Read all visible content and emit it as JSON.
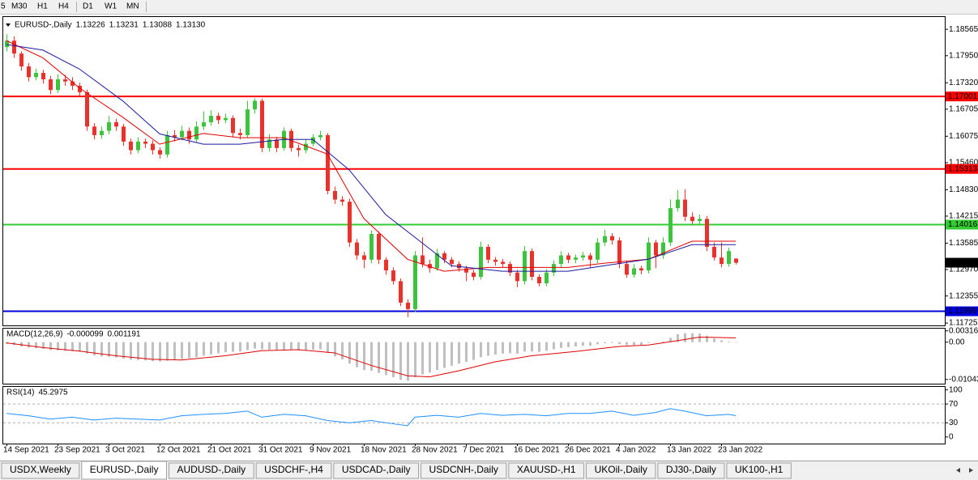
{
  "toolbar": {
    "timeframes": [
      "5",
      "M30",
      "H1",
      "H4",
      "D1",
      "W1",
      "MN"
    ]
  },
  "tabs": {
    "items": [
      "USDX,Weekly",
      "EURUSD-,Daily",
      "AUDUSD-,Daily",
      "USDCHF-,H4",
      "USDCAD-,Daily",
      "USDCNH-,Daily",
      "XAUUSD-,H1",
      "UKOil-,Daily",
      "DJ30-,Daily",
      "UK100-,H1"
    ],
    "active": 1
  },
  "chart_data": [
    {
      "type": "candlestick",
      "title": "EURUSD-,Daily",
      "header_values": [
        "1.13226",
        "1.13231",
        "1.13088",
        "1.13130"
      ],
      "categories": [
        "14 Sep 2021",
        null,
        null,
        null,
        null,
        null,
        null,
        "23 Sep 2021",
        null,
        null,
        null,
        null,
        null,
        null,
        "3 Oct 2021",
        null,
        null,
        null,
        null,
        null,
        null,
        "12 Oct 2021",
        null,
        null,
        null,
        null,
        null,
        null,
        "21 Oct 2021",
        null,
        null,
        null,
        null,
        null,
        null,
        "31 Oct 2021",
        null,
        null,
        null,
        null,
        null,
        null,
        "9 Nov 2021",
        null,
        null,
        null,
        null,
        null,
        null,
        "18 Nov 2021",
        null,
        null,
        null,
        null,
        null,
        null,
        "28 Nov 2021",
        null,
        null,
        null,
        null,
        null,
        null,
        "7 Dec 2021",
        null,
        null,
        null,
        null,
        null,
        null,
        "16 Dec 2021",
        null,
        null,
        null,
        null,
        null,
        null,
        "26 Dec 2021",
        null,
        null,
        null,
        null,
        null,
        null,
        "4 Jan 2022",
        null,
        null,
        null,
        null,
        null,
        null,
        "13 Jan 2022",
        null,
        null,
        null,
        null,
        null,
        null,
        "23 Jan 2022",
        null,
        null
      ],
      "candles": [
        [
          1.1815,
          1.1845,
          1.1805,
          1.183
        ],
        [
          1.183,
          1.184,
          1.179,
          1.18
        ],
        [
          1.18,
          1.1805,
          1.176,
          1.177
        ],
        [
          1.177,
          1.1778,
          1.1735,
          1.1745
        ],
        [
          1.1745,
          1.1765,
          1.1738,
          1.1755
        ],
        [
          1.1755,
          1.1762,
          1.173,
          1.174
        ],
        [
          1.174,
          1.1748,
          1.1705,
          1.1715
        ],
        [
          1.1715,
          1.1752,
          1.1708,
          1.174
        ],
        [
          1.174,
          1.175,
          1.1725,
          1.1735
        ],
        [
          1.1735,
          1.1745,
          1.1715,
          1.1725
        ],
        [
          1.1725,
          1.1732,
          1.17,
          1.171
        ],
        [
          1.171,
          1.1716,
          1.162,
          1.163
        ],
        [
          1.163,
          1.1638,
          1.16,
          1.161
        ],
        [
          1.161,
          1.163,
          1.1602,
          1.162
        ],
        [
          1.162,
          1.1655,
          1.1612,
          1.164
        ],
        [
          1.164,
          1.1648,
          1.162,
          1.163
        ],
        [
          1.163,
          1.1636,
          1.1585,
          1.1595
        ],
        [
          1.1595,
          1.1602,
          1.1565,
          1.1575
        ],
        [
          1.1575,
          1.1605,
          1.1568,
          1.1595
        ],
        [
          1.1595,
          1.1602,
          1.158,
          1.159
        ],
        [
          1.159,
          1.1598,
          1.1565,
          1.1575
        ],
        [
          1.1575,
          1.1582,
          1.1555,
          1.1565
        ],
        [
          1.1565,
          1.162,
          1.1558,
          1.161
        ],
        [
          1.161,
          1.1622,
          1.1595,
          1.1605
        ],
        [
          1.1605,
          1.1632,
          1.1598,
          1.162
        ],
        [
          1.162,
          1.1628,
          1.159,
          1.16
        ],
        [
          1.16,
          1.1642,
          1.1594,
          1.163
        ],
        [
          1.163,
          1.1665,
          1.1622,
          1.164
        ],
        [
          1.164,
          1.1668,
          1.1632,
          1.1655
        ],
        [
          1.1655,
          1.1662,
          1.1636,
          1.1645
        ],
        [
          1.1645,
          1.166,
          1.1638,
          1.165
        ],
        [
          1.165,
          1.1656,
          1.1605,
          1.1615
        ],
        [
          1.1615,
          1.1625,
          1.16,
          1.161
        ],
        [
          1.161,
          1.169,
          1.1604,
          1.167
        ],
        [
          1.167,
          1.1696,
          1.166,
          1.169
        ],
        [
          1.169,
          1.1695,
          1.157,
          1.158
        ],
        [
          1.158,
          1.1612,
          1.1572,
          1.16
        ],
        [
          1.16,
          1.1606,
          1.157,
          1.158
        ],
        [
          1.158,
          1.1628,
          1.1574,
          1.162
        ],
        [
          1.162,
          1.1625,
          1.1572,
          1.158
        ],
        [
          1.158,
          1.1588,
          1.156,
          1.1575
        ],
        [
          1.1575,
          1.16,
          1.1568,
          1.159
        ],
        [
          1.159,
          1.1612,
          1.1584,
          1.1605
        ],
        [
          1.1605,
          1.162,
          1.1598,
          1.161
        ],
        [
          1.161,
          1.1615,
          1.1472,
          1.148
        ],
        [
          1.148,
          1.149,
          1.145,
          1.146
        ],
        [
          1.146,
          1.1468,
          1.1446,
          1.1455
        ],
        [
          1.1455,
          1.1462,
          1.135,
          1.136
        ],
        [
          1.136,
          1.1368,
          1.132,
          1.133
        ],
        [
          1.133,
          1.1338,
          1.13,
          1.132
        ],
        [
          1.132,
          1.1388,
          1.1312,
          1.138
        ],
        [
          1.138,
          1.1386,
          1.131,
          1.132
        ],
        [
          1.132,
          1.1326,
          1.1285,
          1.1295
        ],
        [
          1.1295,
          1.1302,
          1.1262,
          1.127
        ],
        [
          1.127,
          1.1276,
          1.1212,
          1.122
        ],
        [
          1.122,
          1.1228,
          1.1186,
          1.1205
        ],
        [
          1.1205,
          1.134,
          1.1198,
          1.133
        ],
        [
          1.133,
          1.1372,
          1.1302,
          1.131
        ],
        [
          1.131,
          1.132,
          1.129,
          1.13
        ],
        [
          1.13,
          1.1345,
          1.1294,
          1.1335
        ],
        [
          1.1335,
          1.134,
          1.1312,
          1.132
        ],
        [
          1.132,
          1.1326,
          1.1302,
          1.131
        ],
        [
          1.131,
          1.1316,
          1.1292,
          1.13
        ],
        [
          1.13,
          1.1306,
          1.127,
          1.129
        ],
        [
          1.129,
          1.1296,
          1.1272,
          1.128
        ],
        [
          1.128,
          1.1362,
          1.1274,
          1.135
        ],
        [
          1.135,
          1.1356,
          1.1312,
          1.132
        ],
        [
          1.132,
          1.1326,
          1.1306,
          1.1315
        ],
        [
          1.1315,
          1.1322,
          1.1302,
          1.131
        ],
        [
          1.131,
          1.1316,
          1.1282,
          1.129
        ],
        [
          1.129,
          1.1296,
          1.1256,
          1.127
        ],
        [
          1.127,
          1.1352,
          1.1262,
          1.134
        ],
        [
          1.134,
          1.1346,
          1.1272,
          1.128
        ],
        [
          1.128,
          1.1286,
          1.1258,
          1.1265
        ],
        [
          1.1265,
          1.1298,
          1.1258,
          1.129
        ],
        [
          1.129,
          1.1318,
          1.1282,
          1.131
        ],
        [
          1.131,
          1.134,
          1.1302,
          1.133
        ],
        [
          1.133,
          1.1336,
          1.1312,
          1.132
        ],
        [
          1.132,
          1.1332,
          1.1312,
          1.1325
        ],
        [
          1.1325,
          1.1338,
          1.1318,
          1.133
        ],
        [
          1.133,
          1.1336,
          1.13,
          1.132
        ],
        [
          1.132,
          1.137,
          1.1312,
          1.136
        ],
        [
          1.136,
          1.139,
          1.1352,
          1.1375
        ],
        [
          1.1375,
          1.1382,
          1.1355,
          1.1365
        ],
        [
          1.1365,
          1.1372,
          1.13,
          1.131
        ],
        [
          1.131,
          1.1318,
          1.1278,
          1.1285
        ],
        [
          1.1285,
          1.131,
          1.1278,
          1.13
        ],
        [
          1.13,
          1.1306,
          1.1286,
          1.1295
        ],
        [
          1.1295,
          1.1372,
          1.1288,
          1.136
        ],
        [
          1.136,
          1.1366,
          1.13,
          1.133
        ],
        [
          1.133,
          1.1372,
          1.1322,
          1.136
        ],
        [
          1.136,
          1.146,
          1.1352,
          1.144
        ],
        [
          1.144,
          1.1482,
          1.1432,
          1.146
        ],
        [
          1.146,
          1.1484,
          1.141,
          1.142
        ],
        [
          1.142,
          1.143,
          1.1402,
          1.141
        ],
        [
          1.141,
          1.1425,
          1.1402,
          1.1415
        ],
        [
          1.1415,
          1.1422,
          1.134,
          1.135
        ],
        [
          1.135,
          1.136,
          1.1318,
          1.1325
        ],
        [
          1.1325,
          1.136,
          1.1302,
          1.131
        ],
        [
          1.131,
          1.1348,
          1.1304,
          1.134
        ],
        [
          1.13226,
          1.13231,
          1.13088,
          1.1313
        ]
      ],
      "up_color": "#3cc43c",
      "down_color": "#e8322b",
      "lines": [
        {
          "color": "#e00000",
          "x": [
            0,
            5,
            10,
            16,
            21,
            27,
            32,
            38,
            44,
            49,
            55,
            60,
            66,
            77,
            82,
            88,
            94,
            100
          ],
          "values": [
            1.183,
            1.179,
            1.172,
            1.1651,
            1.1589,
            1.1614,
            1.1604,
            1.1604,
            1.1566,
            1.1416,
            1.1321,
            1.1293,
            1.1302,
            1.1302,
            1.1312,
            1.1321,
            1.1363,
            1.1363
          ]
        },
        {
          "color": "#1a1aa0",
          "x": [
            0,
            5,
            10,
            16,
            21,
            27,
            32,
            38,
            42,
            47,
            52,
            57,
            61,
            68,
            77,
            82,
            88,
            94,
            100
          ],
          "values": [
            1.1821,
            1.1808,
            1.1764,
            1.1689,
            1.1613,
            1.1589,
            1.1589,
            1.16,
            1.16,
            1.1529,
            1.1425,
            1.1359,
            1.1306,
            1.1293,
            1.1293,
            1.1306,
            1.1321,
            1.1355,
            1.1355
          ]
        }
      ],
      "levels": [
        {
          "value": 1.17001,
          "label": "1.17001",
          "color": "#ff0000"
        },
        {
          "value": 1.15313,
          "label": "1.15313",
          "color": "#ff0000"
        },
        {
          "value": 1.14016,
          "label": "1.14016",
          "color": "#33cc33"
        },
        {
          "value": 1.11999,
          "label": "1.11999",
          "color": "#0000dd"
        }
      ],
      "current_price": {
        "value": 1.1313,
        "label": "1.13130"
      },
      "ylim": [
        1.1167,
        1.1887
      ],
      "yticks": [
        {
          "value": 1.18565,
          "label": "1.18565"
        },
        {
          "value": 1.1795,
          "label": "1.17950"
        },
        {
          "value": 1.1732,
          "label": "1.17320"
        },
        {
          "value": 1.16705,
          "label": "1.16705"
        },
        {
          "value": 1.16075,
          "label": "1.16075"
        },
        {
          "value": 1.1546,
          "label": "1.15460"
        },
        {
          "value": 1.1483,
          "label": "1.14830"
        },
        {
          "value": 1.14215,
          "label": "1.14215"
        },
        {
          "value": 1.13585,
          "label": "1.13585"
        },
        {
          "value": 1.1297,
          "label": "1.12970"
        },
        {
          "value": 1.12355,
          "label": "1.12355"
        },
        {
          "value": 1.11725,
          "label": "1.11725"
        }
      ]
    },
    {
      "type": "macd",
      "title": "MACD(12,26,9)",
      "main": -9.9e-05,
      "signal": 0.001191,
      "color": "#c0c0c0",
      "signal_color": "#e00000",
      "values": [
        -0.0005,
        -0.0008,
        -0.0012,
        -0.0015,
        -0.0017,
        -0.0019,
        -0.0022,
        -0.0023,
        -0.0024,
        -0.0025,
        -0.0027,
        -0.0032,
        -0.0037,
        -0.004,
        -0.0041,
        -0.0043,
        -0.0046,
        -0.0049,
        -0.005,
        -0.0051,
        -0.0053,
        -0.0054,
        -0.0052,
        -0.005,
        -0.0047,
        -0.0045,
        -0.0042,
        -0.0038,
        -0.0034,
        -0.0031,
        -0.0028,
        -0.0027,
        -0.0026,
        -0.0022,
        -0.0018,
        -0.002,
        -0.0021,
        -0.0022,
        -0.0021,
        -0.0022,
        -0.0023,
        -0.0022,
        -0.0021,
        -0.002,
        -0.003,
        -0.004,
        -0.0048,
        -0.006,
        -0.007,
        -0.0078,
        -0.008,
        -0.0086,
        -0.0092,
        -0.0098,
        -0.0105,
        -0.0108,
        -0.0098,
        -0.009,
        -0.0085,
        -0.0078,
        -0.0072,
        -0.0066,
        -0.006,
        -0.0055,
        -0.005,
        -0.0042,
        -0.0038,
        -0.0035,
        -0.0032,
        -0.0031,
        -0.0032,
        -0.0026,
        -0.0026,
        -0.0027,
        -0.0024,
        -0.002,
        -0.0016,
        -0.0014,
        -0.0012,
        -0.001,
        -0.001,
        -0.0006,
        -0.0003,
        -0.0002,
        -0.0005,
        -0.0008,
        -0.0008,
        -0.0008,
        -0.0002,
        -0.0001,
        0.0002,
        0.0012,
        0.0022,
        0.0025,
        0.0025,
        0.0024,
        0.0018,
        0.001,
        0.0005,
        0.0002,
        -9.9e-05
      ],
      "signal_line": {
        "x": [
          0,
          5,
          10,
          15,
          20,
          24,
          30,
          35,
          40,
          45,
          50,
          55,
          58,
          62,
          67,
          72,
          78,
          84,
          88,
          92,
          95,
          100
        ],
        "values": [
          -0.0002,
          -0.0015,
          -0.0025,
          -0.0038,
          -0.0048,
          -0.005,
          -0.0038,
          -0.0024,
          -0.0021,
          -0.003,
          -0.0065,
          -0.0094,
          -0.0097,
          -0.008,
          -0.0055,
          -0.0038,
          -0.0026,
          -0.0012,
          -0.0008,
          0.0004,
          0.0014,
          0.001191
        ]
      },
      "ylim": [
        -0.0116,
        0.004
      ],
      "yticks": [
        0.003165,
        {
          "value": 0,
          "label": "0.00"
        },
        -0.01043
      ]
    },
    {
      "type": "rsi",
      "title": "RSI(14)",
      "current": 45.2975,
      "color": "#1e90ff",
      "x": [
        0,
        3,
        6,
        9,
        12,
        15,
        18,
        21,
        24,
        27,
        30,
        33,
        35,
        38,
        41,
        44,
        47,
        50,
        53,
        55,
        56,
        59,
        62,
        65,
        68,
        71,
        74,
        77,
        80,
        83,
        86,
        89,
        91,
        93,
        96,
        99,
        100
      ],
      "values": [
        50,
        45,
        38,
        42,
        36,
        40,
        38,
        36,
        45,
        48,
        50,
        55,
        42,
        48,
        45,
        35,
        30,
        35,
        28,
        24,
        42,
        46,
        42,
        50,
        46,
        48,
        45,
        50,
        50,
        55,
        46,
        52,
        60,
        55,
        45,
        48,
        45.2975
      ],
      "ylim": [
        -14,
        108
      ],
      "yticks": [
        100,
        70,
        30,
        0
      ],
      "levels": [
        70,
        30
      ]
    }
  ]
}
